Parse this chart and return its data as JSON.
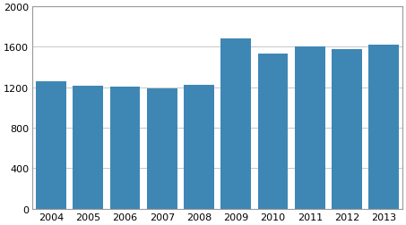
{
  "categories": [
    "2004",
    "2005",
    "2006",
    "2007",
    "2008",
    "2009",
    "2010",
    "2011",
    "2012",
    "2013"
  ],
  "values": [
    1258,
    1215,
    1207,
    1190,
    1228,
    1688,
    1530,
    1607,
    1580,
    1621
  ],
  "bar_color": "#3E87B5",
  "ylim": [
    0,
    2000
  ],
  "yticks": [
    0,
    400,
    800,
    1200,
    1600,
    2000
  ],
  "grid_color": "#b0b0b0",
  "background_color": "#ffffff",
  "bar_width": 0.82,
  "figsize": [
    4.53,
    2.53
  ],
  "dpi": 100
}
